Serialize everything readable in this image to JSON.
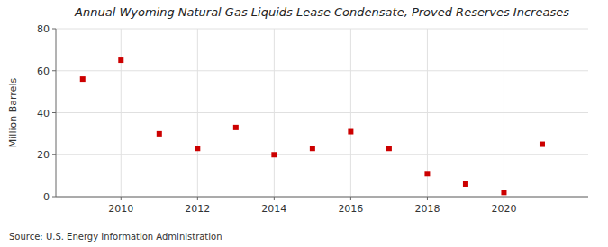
{
  "chart_data": {
    "type": "scatter",
    "title": "Annual Wyoming Natural Gas Liquids Lease Condensate, Proved Reserves Increases",
    "ylabel": "Million Barrels",
    "source": "Source: U.S. Energy Information Administration",
    "x": [
      2009,
      2010,
      2011,
      2012,
      2013,
      2014,
      2015,
      2016,
      2017,
      2018,
      2019,
      2020,
      2021
    ],
    "values": [
      56,
      65,
      30,
      23,
      33,
      20,
      23,
      31,
      23,
      11,
      6,
      2,
      25
    ],
    "color": "#CC0000",
    "marker": "square",
    "xlim": [
      2008.3,
      2022.2
    ],
    "xticks": [
      2010,
      2012,
      2014,
      2016,
      2018,
      2020
    ],
    "ylim": [
      0,
      80
    ],
    "yticks": [
      0,
      20,
      40,
      60,
      80
    ],
    "grid": true
  }
}
